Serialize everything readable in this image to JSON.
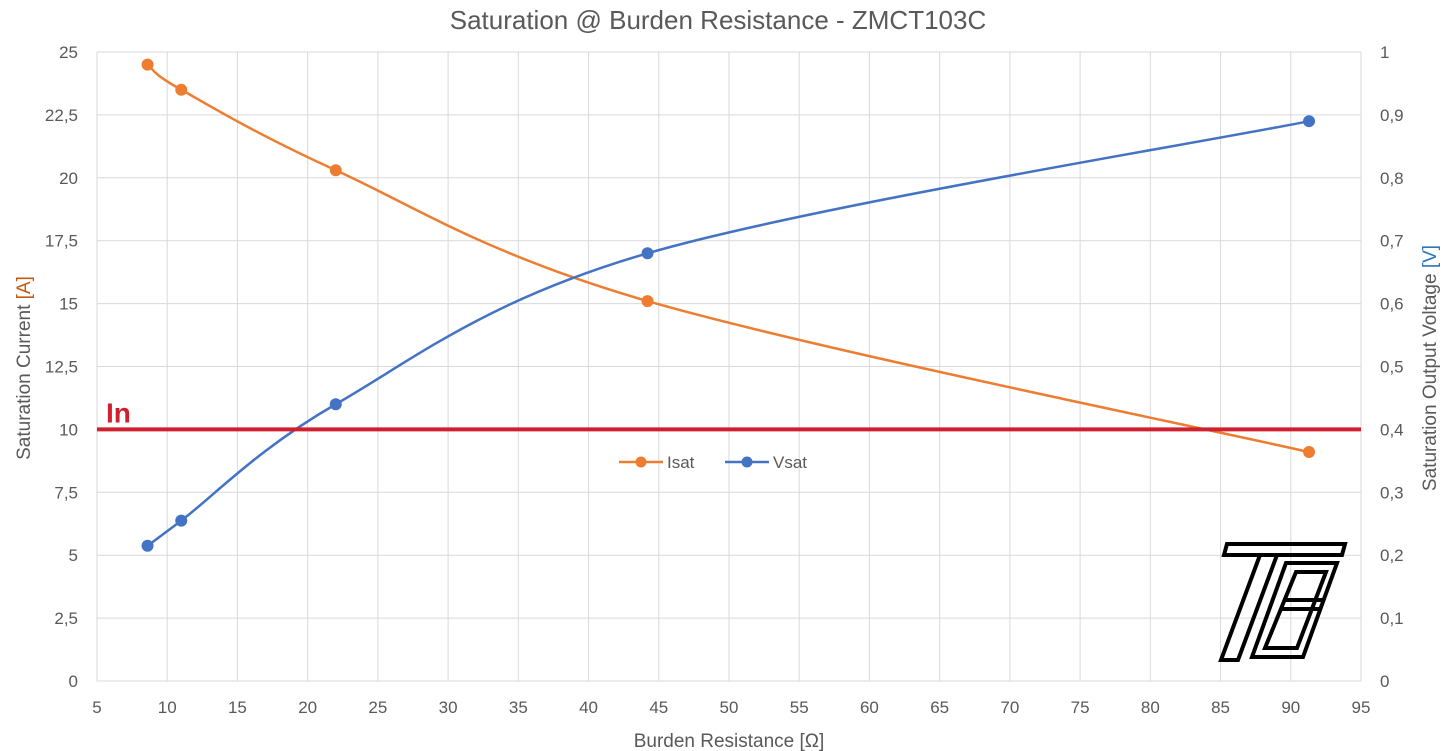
{
  "chart_data": {
    "type": "line",
    "title": "Saturation @ Burden Resistance   -  ZMCT103C",
    "xlabel": "Burden Resistance [Ω]",
    "ylabel": {
      "text": "Saturation Current ",
      "unit": "[A]"
    },
    "y2label": {
      "text": "Saturation Output Voltage ",
      "unit": "[V]"
    },
    "xlim": [
      5,
      95
    ],
    "xticks": [
      5,
      10,
      15,
      20,
      25,
      30,
      35,
      40,
      45,
      50,
      55,
      60,
      65,
      70,
      75,
      80,
      85,
      90,
      95
    ],
    "ylim": [
      0,
      25
    ],
    "yticks": [
      "0",
      "2,5",
      "5",
      "7,5",
      "10",
      "12,5",
      "15",
      "17,5",
      "20",
      "22,5",
      "25"
    ],
    "y2lim": [
      0,
      1
    ],
    "y2ticks": [
      "0",
      "0,1",
      "0,2",
      "0,3",
      "0,4",
      "0,5",
      "0,6",
      "0,7",
      "0,8",
      "0,9",
      "1"
    ],
    "grid": true,
    "legend_position": "center",
    "series": [
      {
        "name": "Isat",
        "axis": "left",
        "color": "#ED7D31",
        "x": [
          8.6,
          11.0,
          22.0,
          44.2,
          91.3
        ],
        "y": [
          24.5,
          23.5,
          20.3,
          15.1,
          9.1
        ]
      },
      {
        "name": "Vsat",
        "axis": "right",
        "color": "#4472C4",
        "x": [
          8.6,
          11.0,
          22.0,
          44.2,
          91.3
        ],
        "y": [
          0.215,
          0.255,
          0.44,
          0.68,
          0.89
        ]
      }
    ],
    "reference_line": {
      "label": "In",
      "y": 10,
      "axis": "left",
      "color": "#D0202F"
    },
    "colors": {
      "axis_text": "#595959",
      "grid": "#D9D9D9",
      "left_unit": "#C55A11",
      "right_unit": "#2E75B6"
    }
  },
  "logo": {
    "name": "TE logo",
    "color": "#000000"
  }
}
